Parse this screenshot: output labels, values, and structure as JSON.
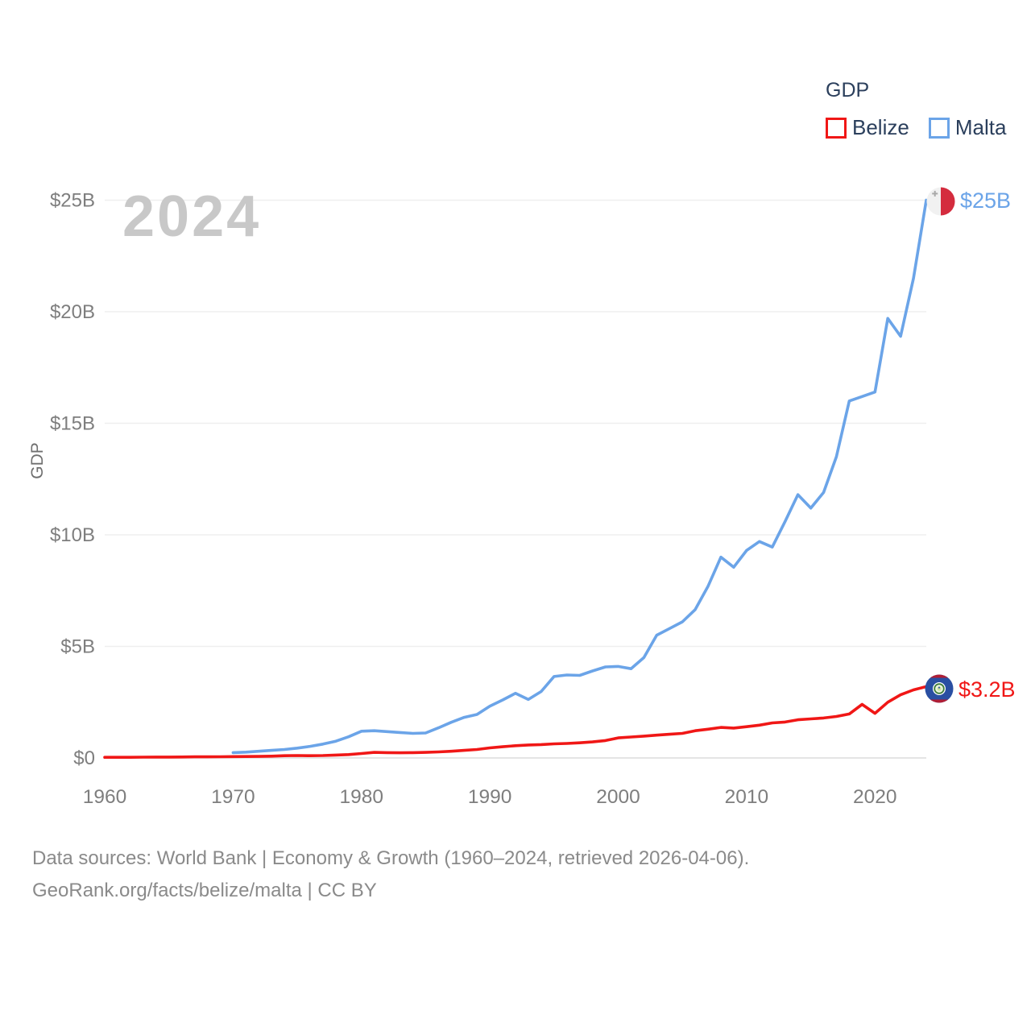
{
  "watermark_year": "2024",
  "legend": {
    "title": "GDP",
    "items": [
      {
        "label": "Belize",
        "color": "#f01716"
      },
      {
        "label": "Malta",
        "color": "#6ba4e8"
      }
    ]
  },
  "y_axis_title": "GDP",
  "end_labels": {
    "malta": "$25B",
    "belize": "$3.2B"
  },
  "footer": {
    "line1": "Data sources: World Bank | Economy & Growth (1960–2024, retrieved 2026-04-06).",
    "line2": "GeoRank.org/facts/belize/malta | CC BY"
  },
  "chart_data": {
    "type": "line",
    "title": "GDP of Belize vs Malta, 1960-2024",
    "legend_title": "GDP",
    "legend_position": "top-right",
    "ylabel": "GDP",
    "grid": true,
    "xlim": [
      1960,
      2024
    ],
    "ylim_billion_usd": [
      0,
      25
    ],
    "x_ticks": [
      1960,
      1970,
      1980,
      1990,
      2000,
      2010,
      2020
    ],
    "y_ticks": [
      {
        "value": 0,
        "label": "$0"
      },
      {
        "value": 5,
        "label": "$5B"
      },
      {
        "value": 10,
        "label": "$10B"
      },
      {
        "value": 15,
        "label": "$15B"
      },
      {
        "value": 20,
        "label": "$20B"
      },
      {
        "value": 25,
        "label": "$25B"
      }
    ],
    "series": [
      {
        "name": "Belize",
        "color": "#f01716",
        "end_label": "$3.2B",
        "x": [
          1960,
          1961,
          1962,
          1963,
          1964,
          1965,
          1966,
          1967,
          1968,
          1969,
          1970,
          1971,
          1972,
          1973,
          1974,
          1975,
          1976,
          1977,
          1978,
          1979,
          1980,
          1981,
          1982,
          1983,
          1984,
          1985,
          1986,
          1987,
          1988,
          1989,
          1990,
          1991,
          1992,
          1993,
          1994,
          1995,
          1996,
          1997,
          1998,
          1999,
          2000,
          2001,
          2002,
          2003,
          2004,
          2005,
          2006,
          2007,
          2008,
          2009,
          2010,
          2011,
          2012,
          2013,
          2014,
          2015,
          2016,
          2017,
          2018,
          2019,
          2020,
          2021,
          2022,
          2023,
          2024
        ],
        "values_billion_usd": [
          0.03,
          0.03,
          0.03,
          0.035,
          0.04,
          0.04,
          0.045,
          0.05,
          0.05,
          0.055,
          0.06,
          0.065,
          0.07,
          0.08,
          0.1,
          0.11,
          0.1,
          0.11,
          0.13,
          0.15,
          0.2,
          0.25,
          0.24,
          0.23,
          0.24,
          0.25,
          0.27,
          0.3,
          0.34,
          0.38,
          0.45,
          0.5,
          0.55,
          0.58,
          0.6,
          0.63,
          0.65,
          0.68,
          0.72,
          0.78,
          0.9,
          0.94,
          0.98,
          1.02,
          1.06,
          1.1,
          1.22,
          1.29,
          1.37,
          1.34,
          1.4,
          1.47,
          1.57,
          1.61,
          1.71,
          1.75,
          1.79,
          1.86,
          1.97,
          2.4,
          2.0,
          2.5,
          2.83,
          3.05,
          3.2
        ]
      },
      {
        "name": "Malta",
        "color": "#6ba4e8",
        "end_label": "$25B",
        "x": [
          1970,
          1971,
          1972,
          1973,
          1974,
          1975,
          1976,
          1977,
          1978,
          1979,
          1980,
          1981,
          1982,
          1983,
          1984,
          1985,
          1986,
          1987,
          1988,
          1989,
          1990,
          1991,
          1992,
          1993,
          1994,
          1995,
          1996,
          1997,
          1998,
          1999,
          2000,
          2001,
          2002,
          2003,
          2004,
          2005,
          2006,
          2007,
          2008,
          2009,
          2010,
          2011,
          2012,
          2013,
          2014,
          2015,
          2016,
          2017,
          2018,
          2019,
          2020,
          2021,
          2022,
          2023,
          2024
        ],
        "values_billion_usd": [
          0.24,
          0.26,
          0.3,
          0.34,
          0.38,
          0.44,
          0.52,
          0.62,
          0.75,
          0.95,
          1.2,
          1.22,
          1.18,
          1.14,
          1.1,
          1.12,
          1.35,
          1.6,
          1.82,
          1.95,
          2.32,
          2.6,
          2.9,
          2.62,
          2.98,
          3.65,
          3.72,
          3.7,
          3.9,
          4.08,
          4.1,
          4.0,
          4.5,
          5.5,
          5.8,
          6.1,
          6.65,
          7.7,
          9.0,
          8.55,
          9.3,
          9.7,
          9.45,
          10.6,
          11.8,
          11.2,
          11.9,
          13.5,
          16.0,
          16.2,
          16.4,
          19.7,
          18.9,
          21.5,
          25.0
        ]
      }
    ]
  },
  "layout_colors": {
    "gridline": "#efefef",
    "baseline": "#e4e4e4",
    "tick_label": "#7e7e7e",
    "legend_text": "#2b3f5c",
    "watermark": "#c8c8c8",
    "footer_text": "#8a8a8a"
  }
}
